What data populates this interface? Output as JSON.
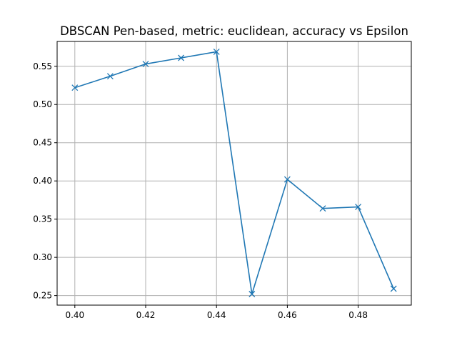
{
  "chart_data": {
    "type": "line",
    "title": "DBSCAN Pen-based, metric: euclidean, accuracy vs Epsilon",
    "xlabel": "",
    "ylabel": "",
    "xlim": [
      0.395,
      0.495
    ],
    "ylim": [
      0.2375,
      0.5825
    ],
    "x_ticks": [
      0.4,
      0.42,
      0.44,
      0.46,
      0.48
    ],
    "x_tick_labels": [
      "0.40",
      "0.42",
      "0.44",
      "0.46",
      "0.48"
    ],
    "y_ticks": [
      0.25,
      0.3,
      0.35,
      0.4,
      0.45,
      0.5,
      0.55
    ],
    "y_tick_labels": [
      "0.25",
      "0.30",
      "0.35",
      "0.40",
      "0.45",
      "0.50",
      "0.55"
    ],
    "grid": true,
    "marker": "x",
    "color": "#1f77b4",
    "series": [
      {
        "x": [
          0.4,
          0.41,
          0.42,
          0.43,
          0.44,
          0.45,
          0.46,
          0.47,
          0.48,
          0.49
        ],
        "y": [
          0.522,
          0.537,
          0.553,
          0.561,
          0.569,
          0.252,
          0.402,
          0.364,
          0.366,
          0.259
        ]
      }
    ]
  }
}
